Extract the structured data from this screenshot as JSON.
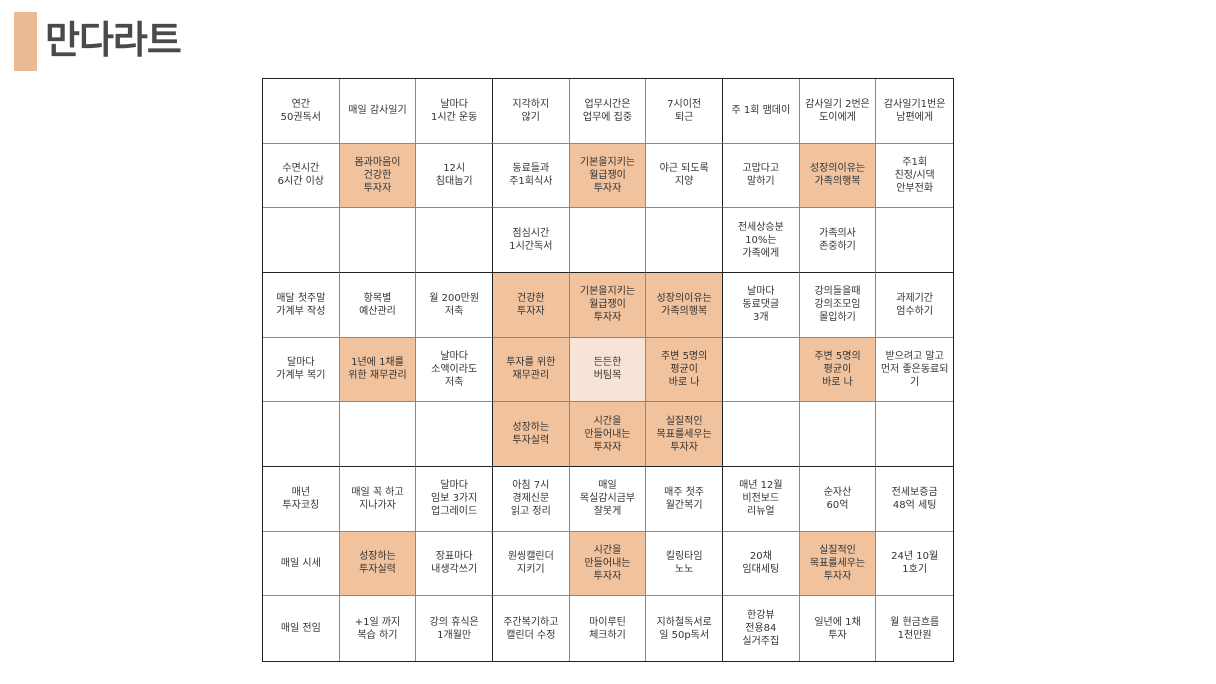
{
  "title": "만다라트",
  "colors": {
    "accent": "#ebb992",
    "highlight": "#f0c29e",
    "core": "#f8e4d6"
  },
  "grid": [
    [
      "연간\n50권독서",
      "매일 감사일기",
      "날마다\n1시간 운동",
      "지각하지\n않기",
      "업무시간은\n업무에 집중",
      "7시이전\n퇴근",
      "주 1회 맴데이",
      "감사일기 2번은\n도이에게",
      "감사일기1번은\n남편에게"
    ],
    [
      "수면시간\n6시간 이상",
      "몸과마음이\n건강한\n투자자",
      "12시\n침대눕기",
      "동료들과\n주1회식사",
      "기본을지키는\n월급쟁이\n투자자",
      "야근 되도록\n지양",
      "고맙다고\n말하기",
      "성장의이유는\n가족의행복",
      "주1회\n친정/시댁\n안부전화"
    ],
    [
      "",
      "",
      "",
      "점심시간\n1시간독서",
      "",
      "",
      "전세상승분\n10%는\n가족에게",
      "가족의사\n존중하기",
      ""
    ],
    [
      "매달 첫주말\n가계부 작성",
      "항목별\n예산관리",
      "월 200만원\n저축",
      "건강한\n투자자",
      "기본을지키는\n월급쟁이\n투자자",
      "성장의이유는\n가족의행복",
      "날마다\n동료댓글\n3개",
      "강의들을때\n강의조모임\n몰입하기",
      "과제기간\n엄수하기"
    ],
    [
      "달마다\n가계부 복기",
      "1년에 1채를\n위한 재무관리",
      "날마다\n소액이라도\n저축",
      "투자를 위한\n재무관리",
      "든든한\n버팀목",
      "주변 5명의\n평균이\n바로 나",
      "",
      "주변 5명의\n평균이\n바로 나",
      "받으려고 말고\n먼저 좋은동료되\n기"
    ],
    [
      "",
      "",
      "",
      "성장하는\n투자실력",
      "시간을\n만들어내는\n투자자",
      "실질적인\n목표를세우는\n투자자",
      "",
      "",
      ""
    ],
    [
      "매년\n투자코칭",
      "매일 꼭 하고\n지나가자",
      "달마다\n임보 3가지\n업그레이드",
      "아침 7시\n경제신문\n읽고 정리",
      "매일\n목실감시금부\n잘못게",
      "매주 첫주\n월간복기",
      "매년 12월\n비전보드\n리뉴얼",
      "순자산\n60억",
      "전세보증금\n48억 세팅"
    ],
    [
      "매일 시세",
      "성장하는\n투자실력",
      "장표마다\n내생각쓰기",
      "원씽캘린더\n지키기",
      "시간을\n만들어내는\n투자자",
      "킬링타임\n노노",
      "20채\n임대세팅",
      "실질적인\n목표를세우는\n투자자",
      "24년 10월\n1호기"
    ],
    [
      "매일 전임",
      "+1일 까지\n복습 하기",
      "강의 휴식은\n1개월만",
      "주간복기하고\n캘린더 수정",
      "마이루틴\n체크하기",
      "지하철독서로\n일 50p독서",
      "한강뷰\n전용84\n실거주집",
      "일년에 1채\n투자",
      "월 현금흐름\n1천만원"
    ]
  ],
  "highlighted_cells": [
    [
      1,
      1
    ],
    [
      1,
      4
    ],
    [
      1,
      7
    ],
    [
      3,
      3
    ],
    [
      3,
      4
    ],
    [
      3,
      5
    ],
    [
      4,
      1
    ],
    [
      4,
      3
    ],
    [
      4,
      5
    ],
    [
      4,
      7
    ],
    [
      5,
      3
    ],
    [
      5,
      4
    ],
    [
      5,
      5
    ],
    [
      7,
      1
    ],
    [
      7,
      4
    ],
    [
      7,
      7
    ]
  ],
  "core_cell": [
    4,
    4
  ]
}
